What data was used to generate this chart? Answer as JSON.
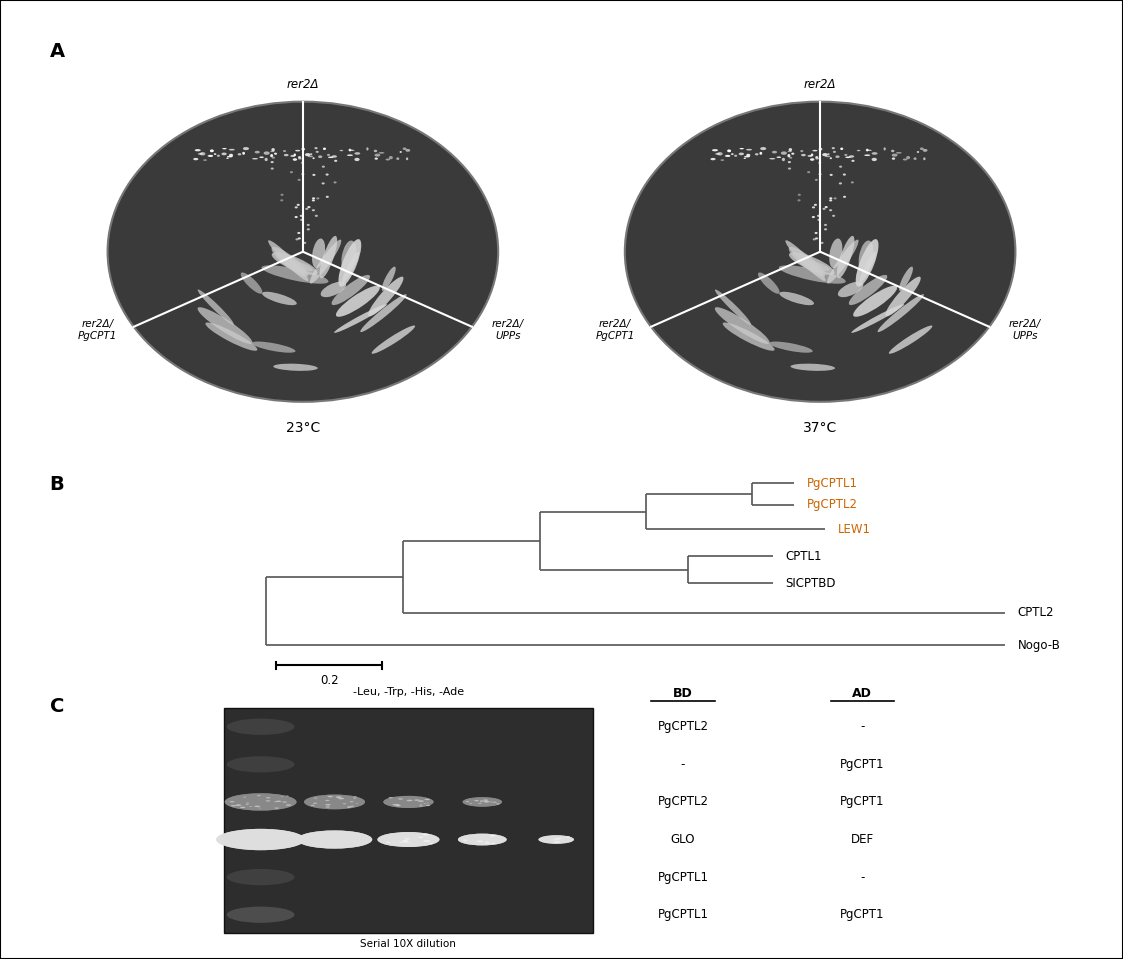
{
  "panel_A_left_label": "23°C",
  "panel_A_right_label": "37°C",
  "panel_A_top_left": "rer2Δ",
  "panel_A_top_right": "rer2Δ",
  "panel_A_bl_left": "rer2Δ/\nPgCPT1",
  "panel_A_bl_right": "rer2Δ/\nUPPs",
  "panel_A_br_left": "rer2Δ/\nPgCPT1",
  "panel_A_br_right": "rer2Δ/\nUPPs",
  "tree_nodes": [
    "PgCPTL1",
    "PgCPTL2",
    "LEW1",
    "CPTL1",
    "SICPTBD",
    "CPTL2",
    "Nogo-B"
  ],
  "tree_node_colors": [
    "#cc6600",
    "#cc6600",
    "#cc6600",
    "#000000",
    "#000000",
    "#000000",
    "#000000"
  ],
  "scale_bar_label": "0.2",
  "table_header_BD": "BD",
  "table_header_AD": "AD",
  "table_label_above": "-Leu, -Trp, -His, -Ade",
  "table_rows": [
    {
      "BD": "PgCPTL2",
      "AD": "-"
    },
    {
      "BD": "-",
      "AD": "PgCPT1"
    },
    {
      "BD": "PgCPTL2",
      "AD": "PgCPT1"
    },
    {
      "BD": "GLO",
      "AD": "DEF"
    },
    {
      "BD": "PgCPTL1",
      "AD": "-"
    },
    {
      "BD": "PgCPTL1",
      "AD": "PgCPT1"
    }
  ],
  "serial_dilution_label": "Serial 10X dilution",
  "bg_color": "#ffffff",
  "lw_tree": 1.2,
  "tree_color": "#555555"
}
